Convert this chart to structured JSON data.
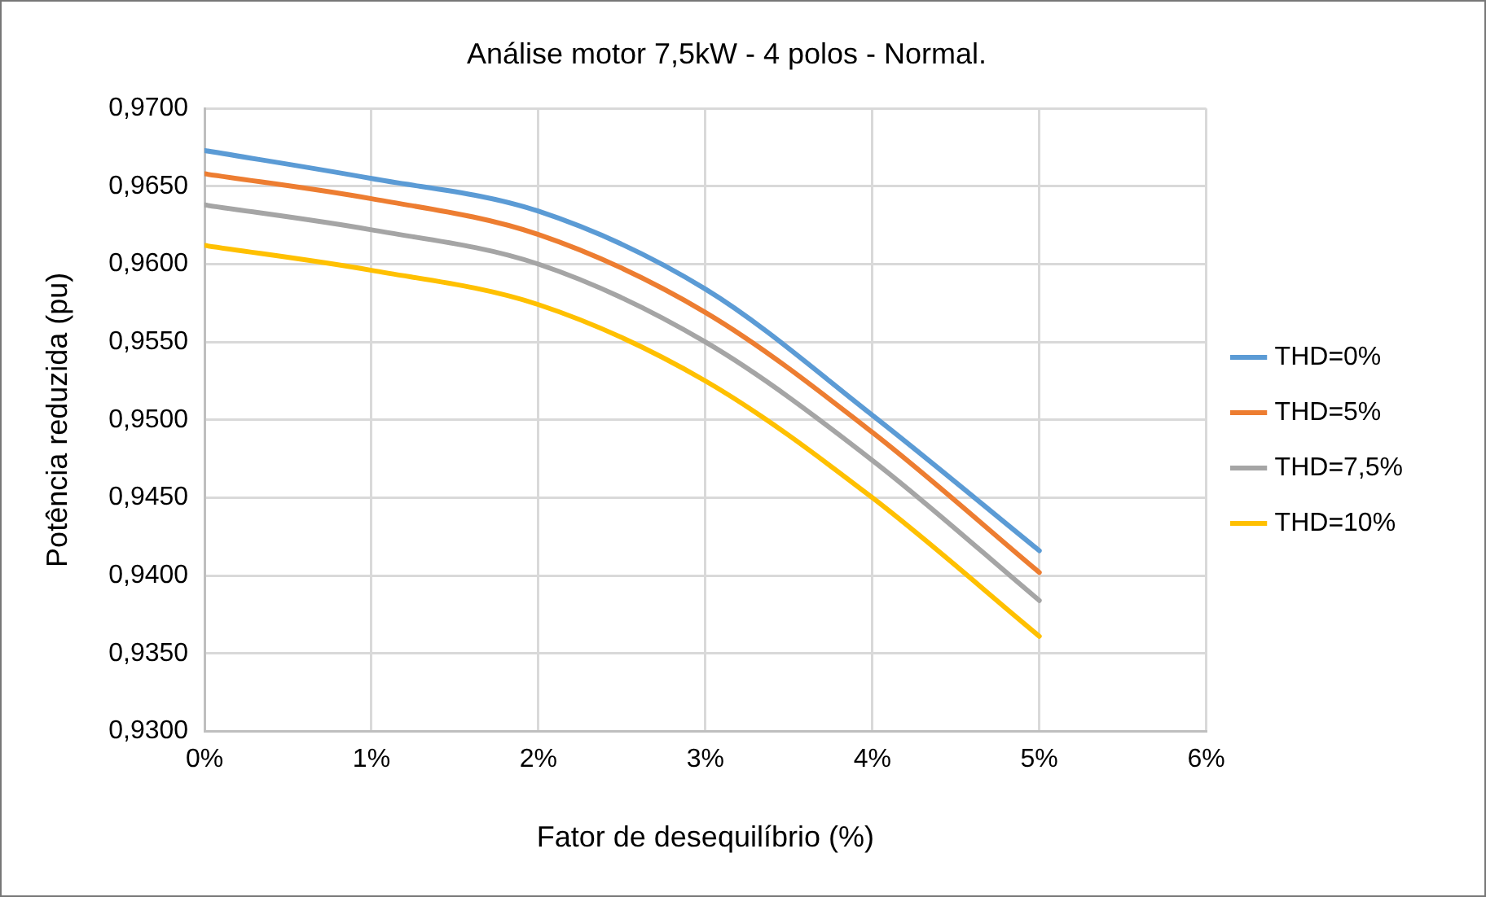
{
  "chart_data": {
    "type": "line",
    "title": "Análise motor 7,5kW - 4 polos - Normal.",
    "xlabel": "Fator de desequilíbrio (%)",
    "ylabel": "Potência reduzida (pu)",
    "x": [
      0,
      1,
      2,
      3,
      4,
      5
    ],
    "series": [
      {
        "name": "THD=0%",
        "color": "#5b9bd5",
        "values": [
          0.9673,
          0.9655,
          0.9634,
          0.9584,
          0.9503,
          0.9416
        ]
      },
      {
        "name": "THD=5%",
        "color": "#ed7d31",
        "values": [
          0.9658,
          0.9642,
          0.9619,
          0.9569,
          0.9492,
          0.9402
        ]
      },
      {
        "name": "THD=7,5%",
        "color": "#a5a5a5",
        "values": [
          0.9638,
          0.9622,
          0.96,
          0.955,
          0.9474,
          0.9384
        ]
      },
      {
        "name": "THD=10%",
        "color": "#ffc000",
        "values": [
          0.9612,
          0.9596,
          0.9574,
          0.9525,
          0.945,
          0.9361
        ]
      }
    ],
    "xlim": [
      0,
      6
    ],
    "xticks": [
      {
        "value": 0,
        "label": "0%"
      },
      {
        "value": 1,
        "label": "1%"
      },
      {
        "value": 2,
        "label": "2%"
      },
      {
        "value": 3,
        "label": "3%"
      },
      {
        "value": 4,
        "label": "4%"
      },
      {
        "value": 5,
        "label": "5%"
      },
      {
        "value": 6,
        "label": "6%"
      }
    ],
    "ylim": [
      0.93,
      0.97
    ],
    "yticks": [
      {
        "value": 0.93,
        "label": "0,9300"
      },
      {
        "value": 0.935,
        "label": "0,9350"
      },
      {
        "value": 0.94,
        "label": "0,9400"
      },
      {
        "value": 0.945,
        "label": "0,9450"
      },
      {
        "value": 0.95,
        "label": "0,9500"
      },
      {
        "value": 0.955,
        "label": "0,9550"
      },
      {
        "value": 0.96,
        "label": "0,9600"
      },
      {
        "value": 0.965,
        "label": "0,9650"
      },
      {
        "value": 0.97,
        "label": "0,9700"
      }
    ],
    "grid": true,
    "legend": "right",
    "marker": "none",
    "line_style": "solid"
  }
}
